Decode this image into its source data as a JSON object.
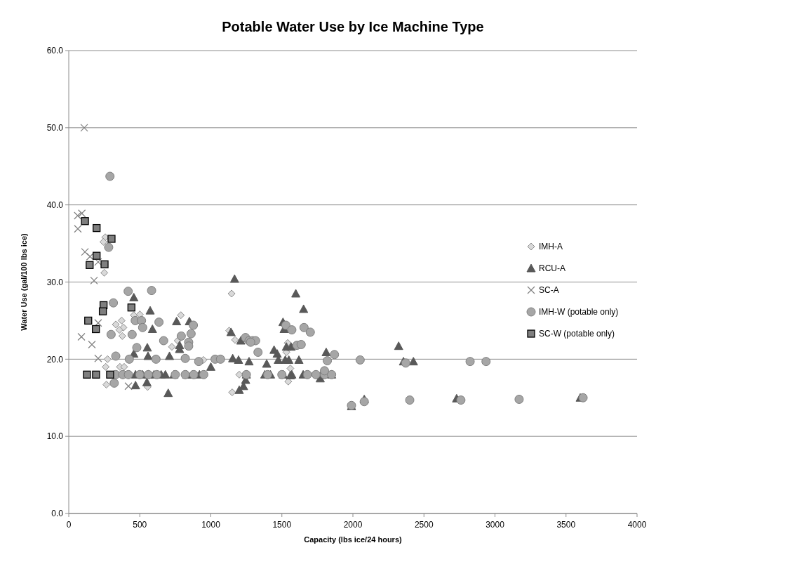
{
  "chart_data": {
    "type": "scatter",
    "title": "Potable Water Use by Ice Machine Type",
    "xlabel": "Capacity (lbs ice/24 hours)",
    "ylabel": "Water Use (gal/100 lbs ice)",
    "xlim": [
      0,
      4000
    ],
    "xticks": [
      0,
      500,
      1000,
      1500,
      2000,
      2500,
      3000,
      3500,
      4000
    ],
    "ylim": [
      0,
      60
    ],
    "yticks": [
      {
        "value": 0,
        "label": "0.0"
      },
      {
        "value": 10,
        "label": "10.0"
      },
      {
        "value": 20,
        "label": "20.0"
      },
      {
        "value": 30,
        "label": "30.0"
      },
      {
        "value": 40,
        "label": "40.0"
      },
      {
        "value": 50,
        "label": "50.0"
      },
      {
        "value": 60,
        "label": "60.0"
      }
    ],
    "grid": "y",
    "legend": "right",
    "series": [
      {
        "name": "IMH-A",
        "color": "#d9d9d9",
        "marker": "diamond",
        "x": [
          257,
          244,
          250,
          372,
          331,
          385,
          356,
          377,
          500,
          458,
          789,
          767,
          726,
          273,
          948,
          1146,
          1129,
          1170,
          1541,
          1532,
          1200,
          265,
          555,
          1150,
          1545,
          260,
          360,
          390,
          1560
        ],
        "values": [
          35.8,
          35.2,
          31.2,
          25.0,
          24.5,
          24.1,
          23.8,
          23.0,
          25.8,
          25.7,
          25.7,
          22.4,
          21.6,
          20.0,
          19.9,
          28.5,
          23.7,
          22.5,
          22.1,
          20.9,
          18.0,
          16.7,
          16.4,
          15.7,
          17.1,
          19.0,
          19.0,
          19.0,
          18.8
        ]
      },
      {
        "name": "RCU-A",
        "color": "#595959",
        "marker": "triangle",
        "x": [
          1167,
          1598,
          1653,
          1508,
          1516,
          1142,
          1211,
          1445,
          1467,
          1532,
          1565,
          1812,
          2322,
          1154,
          1195,
          1269,
          1393,
          1475,
          1524,
          1549,
          1620,
          2356,
          2426,
          458,
          573,
          759,
          849,
          589,
          553,
          780,
          780,
          458,
          558,
          709,
          470,
          520,
          560,
          600,
          650,
          680,
          740,
          830,
          870,
          920,
          1250,
          1380,
          1420,
          1510,
          1570,
          1650,
          1780,
          1850,
          470,
          550,
          700,
          1200,
          1230,
          1245,
          1770,
          1560,
          1990,
          2080,
          2730,
          3600,
          1000
        ],
        "values": [
          30.4,
          28.5,
          26.5,
          24.8,
          23.9,
          23.5,
          22.4,
          21.2,
          20.7,
          21.6,
          21.6,
          20.9,
          21.7,
          20.1,
          19.9,
          19.7,
          19.4,
          19.9,
          19.9,
          19.9,
          19.9,
          19.7,
          19.7,
          28.0,
          26.3,
          24.9,
          24.9,
          23.9,
          21.5,
          21.8,
          21.3,
          20.7,
          20.4,
          20.4,
          18.0,
          18.0,
          18.0,
          18.0,
          18.0,
          18.0,
          18.0,
          18.0,
          18.0,
          18.0,
          18.0,
          18.0,
          18.0,
          18.0,
          18.0,
          18.0,
          18.0,
          18.0,
          16.6,
          17.0,
          15.6,
          16.0,
          16.5,
          17.3,
          17.5,
          17.9,
          13.9,
          14.8,
          14.9,
          15.0,
          19.0
        ]
      },
      {
        "name": "SC-A",
        "color": "#7f7f7f",
        "marker": "cross",
        "x": [
          109,
          92,
          63,
          64,
          114,
          150,
          207,
          178,
          207,
          89,
          163,
          207,
          420
        ],
        "values": [
          50.0,
          38.9,
          38.6,
          36.9,
          33.9,
          33.3,
          32.6,
          30.2,
          24.7,
          22.9,
          21.9,
          20.1,
          16.5
        ]
      },
      {
        "name": "IMH-W (potable only)",
        "color": "#a6a6a6",
        "marker": "circle",
        "x": [
          290,
          281,
          314,
          418,
          583,
          635,
          468,
          512,
          520,
          877,
          861,
          298,
          446,
          792,
          668,
          844,
          844,
          479,
          331,
          426,
          614,
          820,
          915,
          1030,
          1068,
          1528,
          1570,
          1656,
          1700,
          1244,
          1269,
          1294,
          1315,
          1280,
          1332,
          1606,
          1636,
          1870,
          2051,
          2372,
          2825,
          2937,
          330,
          380,
          420,
          500,
          560,
          620,
          750,
          820,
          880,
          950,
          1250,
          1400,
          1500,
          1680,
          1740,
          1800,
          1850,
          320,
          1990,
          2080,
          2400,
          2760,
          3170,
          3620,
          1820,
          1800
        ],
        "values": [
          43.7,
          34.5,
          27.3,
          28.8,
          28.9,
          24.8,
          25.0,
          25.0,
          24.1,
          24.4,
          23.3,
          23.2,
          23.2,
          23.0,
          22.4,
          22.2,
          21.7,
          21.5,
          20.4,
          20.0,
          20.0,
          20.1,
          19.7,
          20.0,
          20.0,
          24.4,
          23.8,
          24.1,
          23.5,
          22.8,
          22.4,
          22.4,
          22.4,
          22.2,
          20.9,
          21.8,
          21.9,
          20.6,
          19.9,
          19.5,
          19.7,
          19.7,
          18.0,
          18.0,
          18.0,
          18.0,
          18.0,
          18.0,
          18.0,
          18.0,
          18.0,
          18.0,
          18.0,
          18.0,
          18.0,
          18.0,
          18.0,
          18.0,
          18.0,
          16.9,
          14.0,
          14.5,
          14.7,
          14.7,
          14.8,
          15.0,
          19.8,
          18.5
        ]
      },
      {
        "name": "SC-W (potable only)",
        "color": "#7f7f7f",
        "marker": "square",
        "x": [
          114,
          196,
          301,
          196,
          147,
          252,
          245,
          240,
          441,
          137,
          191,
          128,
          192,
          291
        ],
        "values": [
          37.9,
          37.0,
          35.6,
          33.4,
          32.2,
          32.3,
          27.0,
          26.2,
          26.7,
          25.0,
          23.9,
          18.0,
          18.0,
          18.0
        ]
      }
    ]
  }
}
